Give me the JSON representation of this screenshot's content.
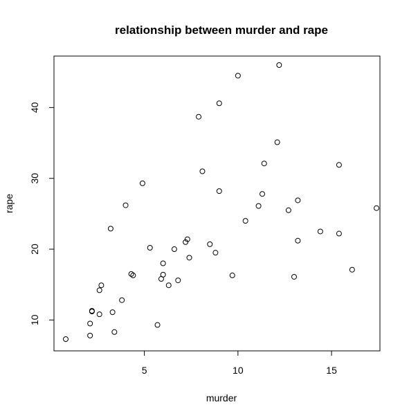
{
  "chart_data": {
    "type": "scatter",
    "title": "relationship between murder and rape",
    "xlabel": "murder",
    "ylabel": "rape",
    "xlim": [
      0.8,
      17.4
    ],
    "ylim": [
      7.3,
      46.0
    ],
    "xticks": [
      5,
      10,
      15
    ],
    "yticks": [
      10,
      20,
      30,
      40
    ],
    "grid": false,
    "point_color": "#000000",
    "series": [
      {
        "x": [
          13.2,
          10.0,
          8.1,
          8.8,
          9.0,
          7.9,
          3.3,
          5.9,
          15.4,
          17.4,
          5.3,
          2.6,
          10.4,
          7.2,
          2.2,
          6.0,
          9.7,
          15.4,
          2.1,
          11.3,
          4.4,
          12.1,
          2.7,
          16.1,
          9.0,
          6.0,
          4.3,
          12.2,
          2.1,
          7.4,
          11.4,
          11.1,
          13.0,
          0.8,
          7.3,
          6.6,
          4.9,
          6.3,
          3.4,
          14.4,
          3.8,
          13.2,
          12.7,
          3.2,
          2.2,
          8.5,
          4.0,
          5.7,
          2.6,
          6.8
        ],
        "y": [
          21.2,
          44.5,
          31.0,
          19.5,
          40.6,
          38.7,
          11.1,
          15.8,
          31.9,
          25.8,
          20.2,
          14.2,
          24.0,
          21.0,
          11.3,
          18.0,
          16.3,
          22.2,
          7.8,
          27.8,
          16.3,
          35.1,
          14.9,
          17.1,
          28.2,
          16.4,
          16.5,
          46.0,
          9.5,
          18.8,
          32.1,
          26.1,
          16.1,
          7.3,
          21.4,
          20.0,
          29.3,
          14.9,
          8.3,
          22.5,
          12.8,
          26.9,
          25.5,
          22.9,
          11.2,
          20.7,
          26.2,
          9.3,
          10.8,
          15.6
        ]
      }
    ]
  }
}
